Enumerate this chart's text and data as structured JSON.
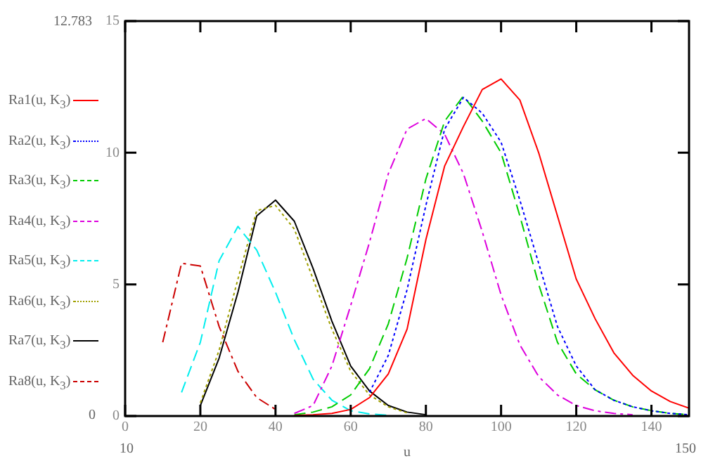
{
  "chart_data": {
    "type": "line",
    "xlabel": "u",
    "xlim": [
      0,
      150
    ],
    "xticks": [
      0,
      20,
      40,
      60,
      80,
      100,
      120,
      140
    ],
    "ylim": [
      0,
      15
    ],
    "yticks": [
      0,
      5,
      10,
      15
    ],
    "grid": false,
    "legend": "left",
    "marker": "none",
    "annotations": [
      "12.783",
      "0",
      "10",
      "150"
    ],
    "series": [
      {
        "name": "Ra1(u, K$_{3}$)",
        "color": "#ff0000",
        "line_style": "solid",
        "x": [
          45,
          50,
          55,
          60,
          65,
          70,
          75,
          80,
          85,
          90,
          95,
          100,
          105,
          110,
          115,
          120,
          125,
          130,
          135,
          140,
          145,
          150
        ],
        "values": [
          0.02,
          0.05,
          0.1,
          0.25,
          0.7,
          1.6,
          3.3,
          6.7,
          9.5,
          11.0,
          12.4,
          12.8,
          12.0,
          10.0,
          7.6,
          5.2,
          3.7,
          2.4,
          1.55,
          0.95,
          0.55,
          0.3
        ]
      },
      {
        "name": "Ra2(u, K$_{3}$)",
        "color": "#0000ff",
        "line_style": "dotted",
        "x": [
          65,
          70,
          75,
          80,
          85,
          90,
          95,
          100,
          105,
          110,
          115,
          120,
          125,
          130,
          135,
          140,
          145,
          150
        ],
        "values": [
          0.9,
          2.3,
          4.8,
          8.0,
          10.9,
          12.1,
          11.5,
          10.4,
          8.2,
          5.8,
          3.4,
          1.9,
          1.0,
          0.6,
          0.35,
          0.2,
          0.1,
          0.05
        ]
      },
      {
        "name": "Ra3(u, K$_{3}$)",
        "color": "#00cc00",
        "line_style": "dashed",
        "x": [
          45,
          50,
          55,
          60,
          65,
          70,
          75,
          80,
          85,
          90,
          95,
          100,
          105,
          110,
          115,
          120,
          125,
          130,
          135,
          140,
          145,
          150
        ],
        "values": [
          0.05,
          0.15,
          0.35,
          0.8,
          1.8,
          3.5,
          6.0,
          9.0,
          11.2,
          12.16,
          11.2,
          10.0,
          7.6,
          5.0,
          2.8,
          1.6,
          1.0,
          0.6,
          0.35,
          0.2,
          0.1,
          0.05
        ]
      },
      {
        "name": "Ra4(u, K$_{3}$)",
        "color": "#dd00dd",
        "line_style": "dashdot",
        "x": [
          45,
          50,
          55,
          60,
          65,
          70,
          75,
          80,
          85,
          90,
          95,
          100,
          105,
          110,
          115,
          120,
          125,
          130,
          135
        ],
        "values": [
          0.1,
          0.4,
          1.9,
          4.2,
          6.6,
          9.2,
          10.9,
          11.3,
          10.7,
          9.2,
          7.0,
          4.6,
          2.7,
          1.5,
          0.8,
          0.4,
          0.2,
          0.1,
          0.05
        ]
      },
      {
        "name": "Ra5(u, K$_{3}$)",
        "color": "#00eeee",
        "line_style": "dashed",
        "x": [
          15,
          20,
          25,
          30,
          35,
          40,
          45,
          50,
          55,
          60,
          65,
          70
        ],
        "values": [
          0.9,
          2.8,
          5.9,
          7.2,
          6.3,
          4.7,
          2.9,
          1.4,
          0.6,
          0.2,
          0.08,
          0.03
        ]
      },
      {
        "name": "Ra6(u, K$_{3}$)",
        "color": "#a0a000",
        "line_style": "dotted",
        "x": [
          20,
          25,
          30,
          35,
          40,
          45,
          50,
          55,
          60,
          65,
          70,
          75
        ],
        "values": [
          0.5,
          2.5,
          5.2,
          7.8,
          8.0,
          7.1,
          5.2,
          3.3,
          1.7,
          0.8,
          0.35,
          0.12
        ]
      },
      {
        "name": "Ra7(u, K$_{3}$)",
        "color": "#000000",
        "line_style": "solid",
        "x": [
          20,
          25,
          30,
          35,
          40,
          45,
          50,
          55,
          60,
          65,
          70,
          75,
          80
        ],
        "values": [
          0.4,
          2.2,
          4.7,
          7.6,
          8.2,
          7.4,
          5.6,
          3.6,
          1.9,
          0.95,
          0.4,
          0.15,
          0.05
        ]
      },
      {
        "name": "Ra8(u, K$_{3}$)",
        "color": "#cc0000",
        "line_style": "dashdot",
        "x": [
          10,
          15,
          20,
          25,
          30,
          35,
          40
        ],
        "values": [
          2.8,
          5.8,
          5.7,
          3.4,
          1.7,
          0.7,
          0.25
        ]
      }
    ]
  }
}
